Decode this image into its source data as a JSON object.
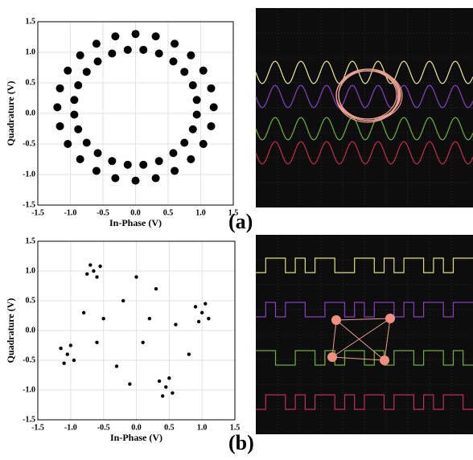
{
  "chart_data": [
    {
      "type": "scatter",
      "xlabel": "In-Phase (V)",
      "ylabel": "Quadrature (V)",
      "color": "#000000",
      "grid": true,
      "xlim": [
        -1.5,
        1.5
      ],
      "ylim": [
        -1.5,
        1.5
      ],
      "xticks": [
        -1.5,
        {
          "value": -1,
          "label": "-1.0"
        },
        -0.5,
        {
          "value": 0,
          "label": "0.0"
        },
        0.5,
        {
          "value": 1,
          "label": "1.0"
        },
        1.5
      ],
      "yticks": [
        -1.5,
        {
          "value": -1,
          "label": "-1.0"
        },
        -0.5,
        {
          "value": 0,
          "label": "0.0"
        },
        0.5,
        {
          "value": 1,
          "label": "1.0"
        },
        1.5
      ],
      "x": [
        1.2,
        1.16,
        1.04,
        0.85,
        0.6,
        0.31,
        0,
        -0.31,
        -0.6,
        -0.85,
        -1.04,
        -1.16,
        -1.2,
        -1.16,
        -1.04,
        -0.85,
        -0.6,
        -0.31,
        0,
        0.31,
        0.6,
        0.85,
        1.04,
        1.16,
        0.94,
        0.88,
        0.75,
        0.58,
        0.36,
        0.12,
        -0.12,
        -0.36,
        -0.58,
        -0.75,
        -0.88,
        -0.94,
        -0.94,
        -0.88,
        -0.75,
        -0.58,
        -0.36,
        -0.12,
        0.12,
        0.36,
        0.58,
        0.75,
        0.88,
        0.94
      ],
      "y": [
        0.1,
        0.41,
        0.7,
        0.95,
        1.14,
        1.26,
        1.3,
        1.26,
        1.14,
        0.95,
        0.7,
        0.41,
        0.1,
        -0.21,
        -0.5,
        -0.75,
        -0.94,
        -1.06,
        -1.1,
        -1.06,
        -0.94,
        -0.75,
        -0.5,
        -0.21,
        0.22,
        0.46,
        0.68,
        0.85,
        0.98,
        1.04,
        1.04,
        0.98,
        0.85,
        0.68,
        0.46,
        0.22,
        -0.02,
        -0.26,
        -0.48,
        -0.65,
        -0.78,
        -0.84,
        -0.84,
        -0.78,
        -0.65,
        -0.48,
        -0.26,
        -0.02
      ]
    },
    {
      "type": "scatter",
      "xlabel": "In-Phase (V)",
      "ylabel": "Quadrature (V)",
      "color": "#000000",
      "grid": true,
      "xlim": [
        -1.5,
        1.5
      ],
      "ylim": [
        -1.5,
        1.5
      ],
      "xticks": [
        -1.5,
        {
          "value": -1,
          "label": "-1.0"
        },
        -0.5,
        {
          "value": 0,
          "label": "0.0"
        },
        0.5,
        {
          "value": 1,
          "label": "1.0"
        },
        1.5
      ],
      "yticks": [
        -1.5,
        {
          "value": -1,
          "label": "-1.0"
        },
        -0.5,
        {
          "value": 0,
          "label": "0.0"
        },
        0.5,
        {
          "value": 1,
          "label": "1.0"
        },
        1.5
      ],
      "x": [
        -0.65,
        -0.55,
        -0.75,
        -0.6,
        -0.7,
        1,
        1.1,
        0.9,
        1.05,
        0.95,
        -1.05,
        -1.15,
        -0.95,
        -1,
        -1.1,
        0.45,
        0.55,
        0.35,
        0.5,
        0.4,
        -0.2,
        0.3,
        -0.5,
        0.1,
        0.6,
        -0.3,
        0,
        -0.8,
        0.8,
        -0.1,
        0.2,
        -0.6
      ],
      "y": [
        1,
        1.08,
        0.95,
        0.9,
        1.1,
        0.3,
        0.2,
        0.4,
        0.45,
        0.15,
        -0.4,
        -0.3,
        -0.5,
        -0.25,
        -0.55,
        -0.95,
        -1.05,
        -0.85,
        -0.8,
        -1.1,
        0.5,
        0.7,
        0.2,
        -0.2,
        0.1,
        -0.6,
        0.9,
        0.3,
        -0.4,
        -0.9,
        0.2,
        -0.2
      ]
    }
  ],
  "panel_labels": [
    "(a)",
    "(b)"
  ]
}
